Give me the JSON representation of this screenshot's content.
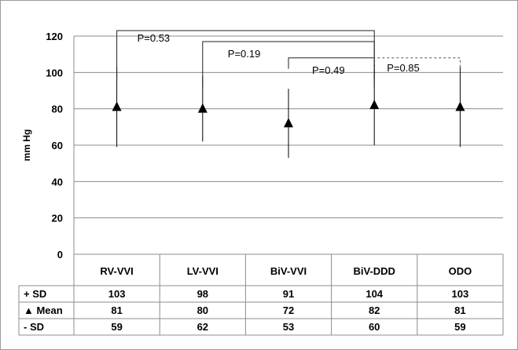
{
  "chart_data": {
    "type": "scatter",
    "ylabel": "mm Hg",
    "ylim": [
      0,
      120
    ],
    "yticks": [
      "0",
      "20",
      "40",
      "60",
      "80",
      "100",
      "120"
    ],
    "grid": true,
    "categories": [
      "RV-VVI",
      "LV-VVI",
      "BiV-VVI",
      "BiV-DDD",
      "ODO"
    ],
    "series": [
      {
        "name": "+ SD",
        "values": [
          103,
          98,
          91,
          104,
          103
        ]
      },
      {
        "name": "▲ Mean",
        "values": [
          81,
          80,
          72,
          82,
          81
        ]
      },
      {
        "name": "- SD",
        "values": [
          59,
          62,
          53,
          60,
          59
        ]
      }
    ],
    "comparisons": [
      {
        "label": "P=0.53",
        "from": "RV-VVI",
        "to": "BiV-DDD",
        "level": 123,
        "dashed": false
      },
      {
        "label": "P=0.19",
        "from": "LV-VVI",
        "to": "BiV-DDD",
        "level": 117,
        "dashed": false
      },
      {
        "label": "P=0.49",
        "from": "BiV-VVI",
        "to": "BiV-DDD",
        "level": 108,
        "dashed": false
      },
      {
        "label": "P=0.85",
        "from": "BiV-DDD",
        "to": "ODO",
        "level": 108,
        "dashed": true
      }
    ],
    "table_rows": [
      {
        "label": "+ SD",
        "values": [
          "103",
          "98",
          "91",
          "104",
          "103"
        ]
      },
      {
        "label": "▲ Mean",
        "values": [
          "81",
          "80",
          "72",
          "82",
          "81"
        ]
      },
      {
        "label": "- SD",
        "values": [
          "59",
          "62",
          "53",
          "60",
          "59"
        ]
      }
    ]
  }
}
